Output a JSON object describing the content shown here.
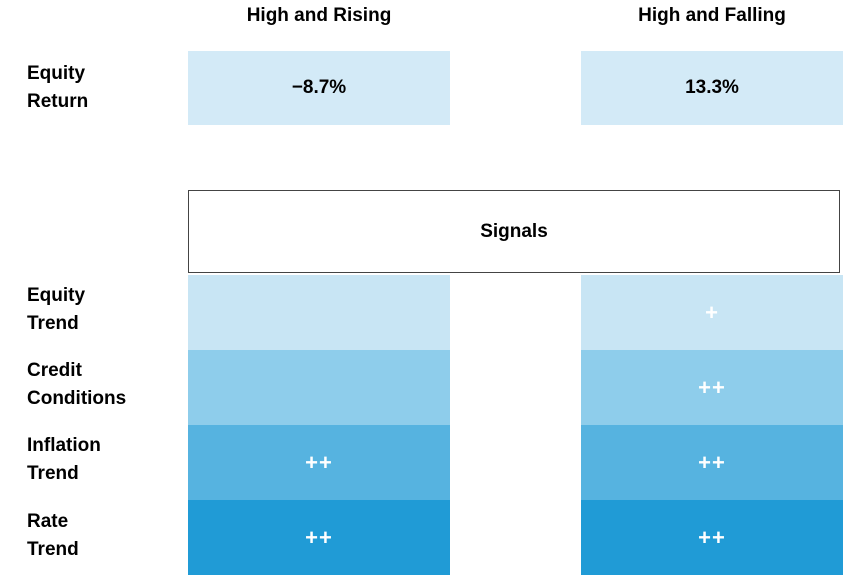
{
  "columns": [
    "High and Rising",
    "High and Falling"
  ],
  "equity_return": {
    "label_line1": "Equity",
    "label_line2": "Return",
    "values": [
      "−8.7%",
      "13.3%"
    ]
  },
  "signals_header": "Signals",
  "signal_rows": [
    {
      "line1": "Equity",
      "line2": "Trend",
      "values": [
        "",
        "+"
      ]
    },
    {
      "line1": "Credit",
      "line2": "Conditions",
      "values": [
        "",
        "++"
      ]
    },
    {
      "line1": "Inflation",
      "line2": "Trend",
      "values": [
        "++",
        "++"
      ]
    },
    {
      "line1": "Rate",
      "line2": "Trend",
      "values": [
        "++",
        "++"
      ]
    }
  ],
  "colors": {
    "return_fill": "#d3eaf7",
    "equity_trend": "#c8e5f4",
    "credit_conditions": "#8ecdeb",
    "inflation_trend": "#56b3e0",
    "rate_trend": "#209bd6"
  }
}
